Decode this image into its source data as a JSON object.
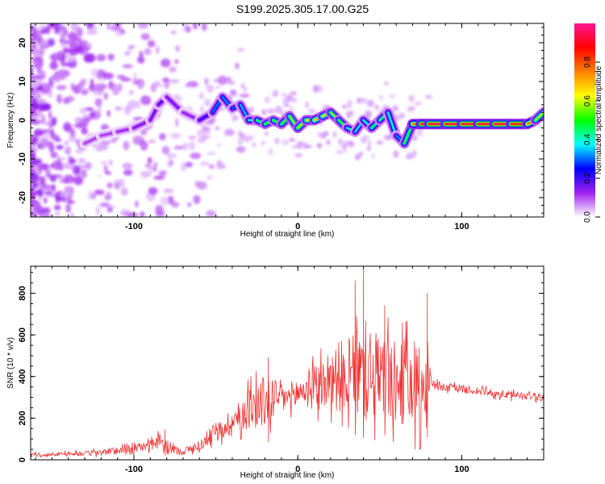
{
  "figure_title": "S199.2025.305.17.00.G25",
  "chart_data": [
    {
      "type": "heatmap",
      "title": "",
      "xlabel": "Height of straight line (km)",
      "ylabel": "Frequency (Hz)",
      "xlim": [
        -163,
        150
      ],
      "ylim": [
        -25,
        25
      ],
      "x_ticks": [
        -100,
        0,
        100
      ],
      "y_ticks": [
        -20,
        -10,
        0,
        10,
        20
      ],
      "colorbar": {
        "label": "Normalized spectral amplitude",
        "range": [
          0,
          1
        ],
        "ticks": [
          0.0,
          0.2,
          0.4,
          0.6,
          0.8
        ],
        "tick_labels": [
          "0.0",
          "0.2",
          "0.4",
          "0.6",
          "0.8"
        ],
        "colors": [
          "#ffffff",
          "#a020f0",
          "#0000ff",
          "#00ffff",
          "#00ff00",
          "#ffff00",
          "#ff8000",
          "#ff0000",
          "#ff1493"
        ]
      },
      "ridge": {
        "x": [
          -130,
          -120,
          -110,
          -100,
          -90,
          -85,
          -80,
          -70,
          -60,
          -52,
          -46,
          -40,
          -35,
          -30,
          -25,
          -20,
          -15,
          -10,
          -5,
          0,
          5,
          10,
          15,
          20,
          25,
          30,
          35,
          40,
          45,
          50,
          55,
          60,
          65,
          70,
          75,
          80,
          90,
          100,
          110,
          120,
          130,
          140,
          145,
          150
        ],
        "y": [
          -6,
          -4,
          -3,
          -2,
          0,
          4,
          6,
          2,
          0,
          2,
          6,
          3,
          4,
          0,
          0,
          -1,
          0,
          -1,
          1,
          -2,
          0,
          0,
          1,
          2,
          0,
          -2,
          -3,
          0,
          -2,
          0,
          2,
          -4,
          -6,
          -1,
          -1,
          -1,
          -1,
          -1,
          -1,
          -1,
          -1,
          -1,
          0,
          2
        ],
        "amplitude": [
          0.1,
          0.12,
          0.1,
          0.15,
          0.15,
          0.18,
          0.2,
          0.12,
          0.15,
          0.28,
          0.35,
          0.3,
          0.3,
          0.4,
          0.45,
          0.5,
          0.55,
          0.5,
          0.55,
          0.6,
          0.6,
          0.65,
          0.7,
          0.6,
          0.55,
          0.5,
          0.35,
          0.4,
          0.45,
          0.5,
          0.45,
          0.35,
          0.3,
          0.7,
          0.9,
          0.95,
          0.95,
          0.95,
          0.95,
          0.95,
          0.95,
          0.9,
          0.7,
          0.5
        ]
      }
    },
    {
      "type": "line",
      "title": "",
      "xlabel": "Height of straight line (km)",
      "ylabel": "SNR (10 * v/v)",
      "xlim": [
        -163,
        150
      ],
      "ylim": [
        0,
        930
      ],
      "x_ticks": [
        -100,
        0,
        100
      ],
      "y_ticks": [
        0,
        200,
        400,
        600,
        800
      ],
      "color": "#ee3333",
      "series": [
        {
          "name": "SNR",
          "x": [
            -163,
            -150,
            -140,
            -130,
            -120,
            -110,
            -100,
            -90,
            -85,
            -80,
            -75,
            -70,
            -60,
            -50,
            -45,
            -40,
            -35,
            -30,
            -25,
            -20,
            -15,
            -10,
            -5,
            0,
            5,
            10,
            15,
            20,
            25,
            30,
            35,
            40,
            42,
            45,
            50,
            55,
            60,
            65,
            70,
            75,
            79,
            82,
            90,
            100,
            110,
            120,
            130,
            140,
            150
          ],
          "y": [
            25,
            25,
            30,
            30,
            35,
            45,
            55,
            70,
            90,
            70,
            45,
            40,
            70,
            120,
            160,
            180,
            210,
            250,
            260,
            280,
            300,
            300,
            300,
            320,
            340,
            350,
            360,
            390,
            400,
            410,
            400,
            430,
            420,
            420,
            400,
            390,
            360,
            370,
            360,
            360,
            360,
            360,
            350,
            340,
            330,
            320,
            310,
            310,
            300
          ],
          "spread": [
            8,
            10,
            10,
            12,
            15,
            18,
            20,
            25,
            35,
            30,
            20,
            18,
            25,
            40,
            60,
            70,
            80,
            100,
            120,
            130,
            110,
            80,
            70,
            80,
            90,
            110,
            130,
            150,
            170,
            180,
            200,
            230,
            250,
            230,
            220,
            210,
            200,
            210,
            220,
            220,
            220,
            22,
            20,
            20,
            20,
            20,
            20,
            20,
            22
          ]
        }
      ],
      "peaks": [
        {
          "x": 40,
          "y": 930
        },
        {
          "x": 35,
          "y": 860
        },
        {
          "x": 79,
          "y": 800
        },
        {
          "x": 53,
          "y": 740
        },
        {
          "x": -18,
          "y": 490
        },
        {
          "x": -81,
          "y": 145
        }
      ]
    }
  ]
}
